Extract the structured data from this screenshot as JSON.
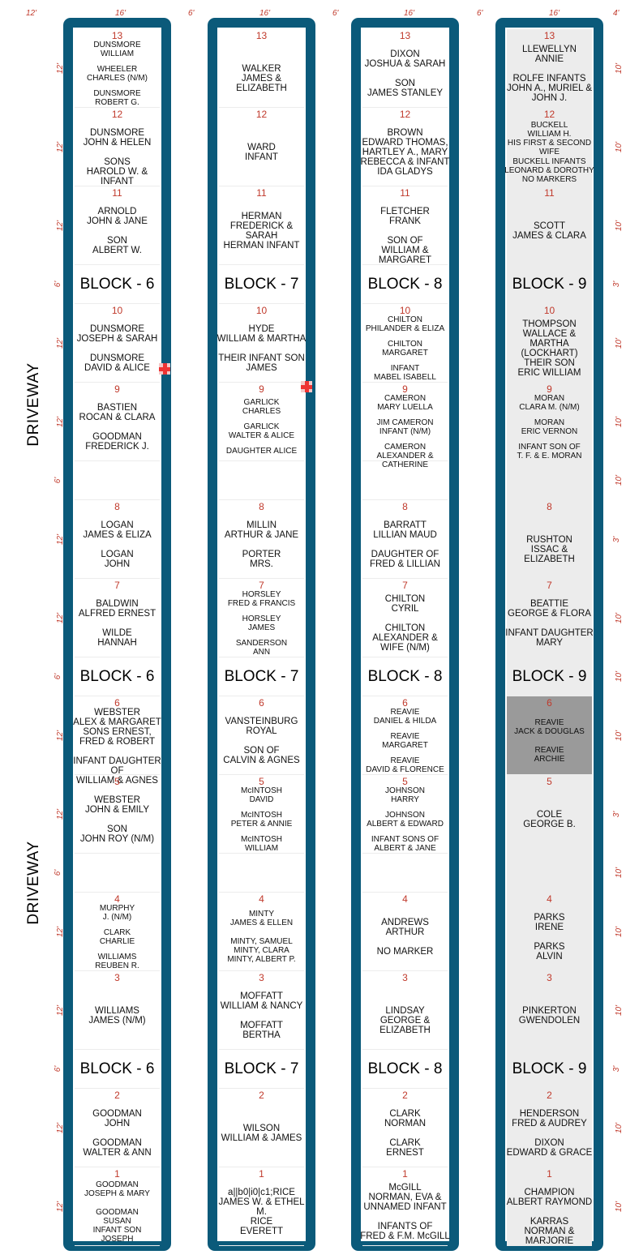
{
  "dims": {
    "top": [
      "12'",
      "16'",
      "6'",
      "16'",
      "6'",
      "16'",
      "6'",
      "16'",
      "4'"
    ],
    "left": [
      "12'",
      "12'",
      "12'",
      "6'",
      "12'",
      "12'",
      "6'",
      "12'",
      "12'",
      "6'",
      "12'",
      "12'",
      "6'",
      "12'",
      "12'",
      "6'",
      "12'",
      "12'"
    ],
    "right": [
      "10'",
      "10'",
      "10'",
      "3'",
      "10'",
      "10'",
      "10'",
      "3'",
      "10'",
      "10'",
      "10'",
      "3'",
      "10'",
      "10'",
      "10'",
      "3'",
      "10'",
      "10'"
    ]
  },
  "labels": {
    "driveway": "DRIVEWAY"
  },
  "columns": [
    {
      "block": "BLOCK - 6",
      "lots": [
        {
          "num": "13",
          "entries": [
            "DUNSMORE\nWILLIAM",
            "WHEELER\nCHARLES (N/M)",
            "DUNSMORE\nROBERT G."
          ]
        },
        {
          "num": "12",
          "entries": [
            "DUNSMORE\nJOHN & HELEN",
            "SONS\nHAROLD W. & INFANT"
          ],
          "big": true
        },
        {
          "num": "11",
          "entries": [
            "ARNOLD\nJOHN & JANE",
            "SON\nALBERT W."
          ],
          "big": true
        },
        {
          "num": "10",
          "entries": [
            "DUNSMORE\nJOSEPH & SARAH",
            "DUNSMORE\nDAVID & ALICE"
          ],
          "big": true
        },
        {
          "num": "9",
          "entries": [
            "BASTIEN\nROCAN & CLARA",
            "GOODMAN\nFREDERICK J."
          ],
          "big": true
        },
        {
          "num": "8",
          "entries": [
            "LOGAN\nJAMES & ELIZA",
            "LOGAN\nJOHN"
          ],
          "big": true
        },
        {
          "num": "7",
          "entries": [
            "BALDWIN\nALFRED ERNEST",
            "WILDE\nHANNAH"
          ],
          "big": true
        },
        {
          "num": "6",
          "entries": [
            "WEBSTER\nALEX & MARGARET\nSONS ERNEST,\nFRED & ROBERT",
            "INFANT DAUGHTER OF\nWILLIAM & AGNES"
          ],
          "big": true
        },
        {
          "num": "5",
          "entries": [
            "WEBSTER\nJOHN & EMILY",
            "SON\nJOHN ROY (N/M)"
          ],
          "big": true
        },
        {
          "num": "4",
          "entries": [
            "MURPHY\nJ. (N/M)",
            "CLARK\nCHARLIE",
            "WILLIAMS\nREUBEN R."
          ]
        },
        {
          "num": "3",
          "entries": [
            "WILLIAMS\nJAMES (N/M)"
          ],
          "big": true
        },
        {
          "num": "2",
          "entries": [
            "GOODMAN\nJOHN",
            "GOODMAN\nWALTER & ANN"
          ],
          "big": true
        },
        {
          "num": "1",
          "entries": [
            "GOODMAN\nJOSEPH & MARY",
            "GOODMAN\nSUSAN\nINFANT SON\nJOSEPH"
          ]
        }
      ]
    },
    {
      "block": "BLOCK - 7",
      "lots": [
        {
          "num": "13",
          "entries": [
            "WALKER\nJAMES & ELIZABETH"
          ],
          "big": true
        },
        {
          "num": "12",
          "entries": [
            "WARD\nINFANT"
          ],
          "big": true
        },
        {
          "num": "11",
          "entries": [
            "HERMAN\nFREDERICK & SARAH",
            "HERMAN INFANT"
          ],
          "big": true
        },
        {
          "num": "10",
          "entries": [
            "HYDE\nWILLIAM & MARTHA",
            "THEIR INFANT SON\nJAMES"
          ],
          "big": true
        },
        {
          "num": "9",
          "entries": [
            "GARLICK\nCHARLES",
            "GARLICK\nWALTER & ALICE",
            "DAUGHTER ALICE"
          ]
        },
        {
          "num": "8",
          "entries": [
            "MILLIN\nARTHUR & JANE",
            "PORTER\nMRS."
          ],
          "big": true
        },
        {
          "num": "7",
          "entries": [
            "HORSLEY\nFRED & FRANCIS",
            "HORSLEY\nJAMES",
            "SANDERSON\nANN"
          ]
        },
        {
          "num": "6",
          "entries": [
            "VANSTEINBURG\nROYAL",
            "SON OF\nCALVIN & AGNES"
          ],
          "big": true
        },
        {
          "num": "5",
          "entries": [
            "McINTOSH\nDAVID",
            "McINTOSH\nPETER & ANNIE",
            "McINTOSH\nWILLIAM"
          ]
        },
        {
          "num": "4",
          "entries": [
            "MINTY\nJAMES & ELLEN",
            "MINTY, SAMUEL\nMINTY, CLARA\nMINTY, ALBERT P."
          ]
        },
        {
          "num": "3",
          "entries": [
            "MOFFATT\nWILLIAM & NANCY",
            "MOFFATT\nBERTHA"
          ],
          "big": true
        },
        {
          "num": "2",
          "entries": [
            "WILSON\nWILLIAM & JAMES"
          ],
          "big": true
        },
        {
          "num": "1",
          "entries": [
            "a||b0|i0|c1;RICE\nJAMES W. & ETHEL M.",
            "RICE\nEVERETT"
          ],
          "big": true
        }
      ]
    },
    {
      "block": "BLOCK - 8",
      "lots": [
        {
          "num": "13",
          "entries": [
            "DIXON\nJOSHUA & SARAH",
            "SON\nJAMES STANLEY"
          ],
          "big": true
        },
        {
          "num": "12",
          "entries": [
            "BROWN\nEDWARD THOMAS,\nHARTLEY A., MARY\nREBECCA & INFANT\nIDA GLADYS"
          ],
          "big": true
        },
        {
          "num": "11",
          "entries": [
            "FLETCHER\nFRANK",
            "SON OF\nWILLIAM & MARGARET"
          ],
          "big": true
        },
        {
          "num": "10",
          "entries": [
            "CHILTON\nPHILANDER & ELIZA",
            "CHILTON\nMARGARET",
            "INFANT\nMABEL ISABELL"
          ]
        },
        {
          "num": "9",
          "entries": [
            "CAMERON\nMARY LUELLA",
            "JIM CAMERON\nINFANT (N/M)",
            "CAMERON\nALEXANDER & CATHERINE"
          ]
        },
        {
          "num": "8",
          "entries": [
            "BARRATT\nLILLIAN MAUD",
            "DAUGHTER OF\nFRED & LILLIAN"
          ],
          "big": true
        },
        {
          "num": "7",
          "entries": [
            "CHILTON\nCYRIL",
            "CHILTON\nALEXANDER &\nWIFE (N/M)"
          ],
          "big": true
        },
        {
          "num": "6",
          "entries": [
            "REAVIE\nDANIEL & HILDA",
            "REAVIE\nMARGARET",
            "REAVIE\nDAVID & FLORENCE"
          ]
        },
        {
          "num": "5",
          "entries": [
            "JOHNSON\nHARRY",
            "JOHNSON\nALBERT & EDWARD",
            "INFANT SONS OF\nALBERT & JANE"
          ]
        },
        {
          "num": "4",
          "entries": [
            "ANDREWS\nARTHUR",
            "NO MARKER"
          ],
          "big": true
        },
        {
          "num": "3",
          "entries": [
            "LINDSAY\nGEORGE & ELIZABETH"
          ],
          "big": true
        },
        {
          "num": "2",
          "entries": [
            "CLARK\nNORMAN",
            "CLARK\nERNEST"
          ],
          "big": true
        },
        {
          "num": "1",
          "entries": [
            "McGILL\nNORMAN, EVA &\nUNNAMED INFANT",
            "INFANTS OF\nFRED & F.M. McGILL"
          ],
          "big": true
        }
      ]
    },
    {
      "block": "BLOCK - 9",
      "gray": true,
      "lots": [
        {
          "num": "13",
          "entries": [
            "LLEWELLYN\nANNIE",
            "ROLFE INFANTS\nJOHN A., MURIEL &\nJOHN J."
          ],
          "big": true
        },
        {
          "num": "12",
          "entries": [
            "BUCKELL\nWILLIAM H.\nHIS FIRST & SECOND WIFE",
            "BUCKELL INFANTS\nLEONARD & DOROTHY\nNO MARKERS"
          ]
        },
        {
          "num": "11",
          "entries": [
            "SCOTT\nJAMES & CLARA"
          ],
          "big": true
        },
        {
          "num": "10",
          "entries": [
            "THOMPSON\nWALLACE &\nMARTHA (LOCKHART)",
            "THEIR SON\nERIC WILLIAM"
          ],
          "big": true
        },
        {
          "num": "9",
          "entries": [
            "MORAN\nCLARA M. (N/M)",
            "MORAN\nERIC VERNON",
            "INFANT SON OF\nT. F. & E. MORAN"
          ]
        },
        {
          "num": "8",
          "entries": [
            "RUSHTON\nISSAC & ELIZABETH"
          ],
          "big": true
        },
        {
          "num": "7",
          "entries": [
            "BEATTIE\nGEORGE & FLORA",
            "INFANT DAUGHTER\nMARY"
          ],
          "big": true
        },
        {
          "num": "6",
          "entries": [
            "REAVIE\nJACK & DOUGLAS",
            "REAVIE\nARCHIE"
          ],
          "dark": true
        },
        {
          "num": "5",
          "entries": [
            "COLE\nGEORGE B."
          ],
          "big": true
        },
        {
          "num": "4",
          "entries": [
            "PARKS\nIRENE",
            "PARKS\nALVIN"
          ],
          "big": true
        },
        {
          "num": "3",
          "entries": [
            "PINKERTON\nGWENDOLEN"
          ],
          "big": true
        },
        {
          "num": "2",
          "entries": [
            "HENDERSON\nFRED & AUDREY",
            "DIXON\nEDWARD & GRACE"
          ],
          "big": true
        },
        {
          "num": "1",
          "entries": [
            "CHAMPION\nALBERT RAYMOND",
            "KARRAS\nNORMAN & MARJORIE"
          ],
          "big": true
        }
      ]
    }
  ]
}
